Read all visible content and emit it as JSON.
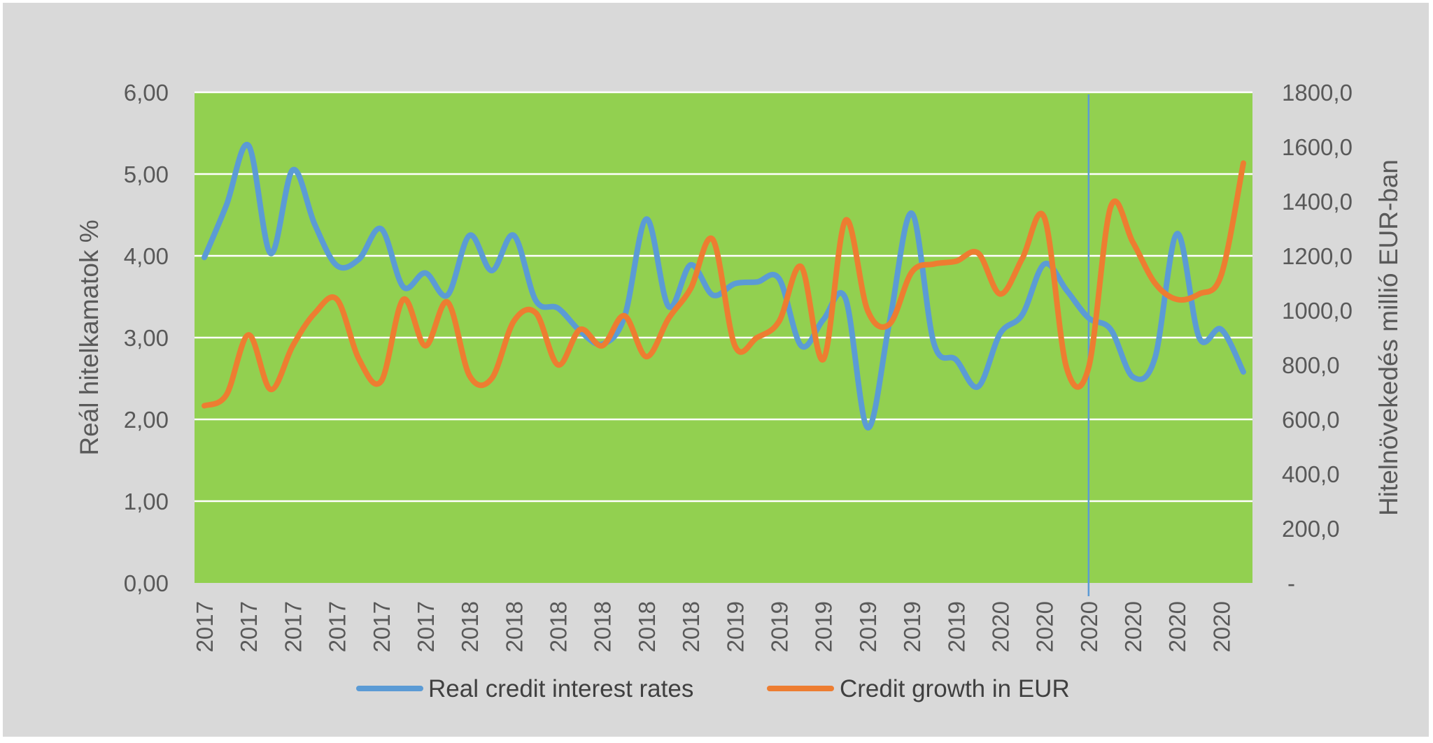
{
  "chart_data": {
    "type": "line",
    "title": "",
    "ylabel": "Reál hitelkamatok %",
    "y2label": "Hitelnövekedés millió EUR-ban",
    "ylim": [
      0,
      6
    ],
    "y2lim": [
      0,
      1800
    ],
    "y_ticks": [
      "0,00",
      "1,00",
      "2,00",
      "3,00",
      "4,00",
      "5,00",
      "6,00"
    ],
    "y2_ticks": [
      "-",
      "200,0",
      "400,0",
      "600,0",
      "800,0",
      "1000,0",
      "1200,0",
      "1400,0",
      "1600,0",
      "1800,0"
    ],
    "x_tick_labels": [
      "2017",
      "2017",
      "2017",
      "2017",
      "2017",
      "2017",
      "2018",
      "2018",
      "2018",
      "2018",
      "2018",
      "2018",
      "2019",
      "2019",
      "2019",
      "2019",
      "2019",
      "2019",
      "2020",
      "2020",
      "2020",
      "2020",
      "2020",
      "2020"
    ],
    "plot_background": "#92d050",
    "grid": true,
    "legend_position": "bottom",
    "vertical_marker_index": 40,
    "series": [
      {
        "name": "Real credit interest rates",
        "axis": "left",
        "color": "#5b9bd5",
        "values": [
          3.98,
          4.62,
          5.35,
          4.03,
          5.05,
          4.38,
          3.88,
          3.96,
          4.33,
          3.62,
          3.79,
          3.52,
          4.25,
          3.82,
          4.25,
          3.45,
          3.36,
          3.08,
          2.92,
          3.25,
          4.45,
          3.38,
          3.89,
          3.52,
          3.66,
          3.68,
          3.72,
          2.9,
          3.22,
          3.48,
          1.9,
          3.2,
          4.52,
          2.93,
          2.73,
          2.4,
          3.05,
          3.28,
          3.9,
          3.58,
          3.24,
          3.1,
          2.52,
          2.75,
          4.27,
          3.0,
          3.1,
          2.58
        ]
      },
      {
        "name": "Credit growth in EUR",
        "axis": "right",
        "color": "#ed7d31",
        "values": [
          650,
          690,
          910,
          710,
          870,
          990,
          1040,
          820,
          740,
          1040,
          870,
          1030,
          760,
          750,
          960,
          990,
          800,
          930,
          870,
          980,
          830,
          970,
          1080,
          1260,
          870,
          900,
          960,
          1160,
          820,
          1330,
          1000,
          950,
          1140,
          1170,
          1180,
          1210,
          1060,
          1190,
          1340,
          790,
          790,
          1380,
          1250,
          1100,
          1040,
          1060,
          1130,
          1540
        ]
      }
    ]
  }
}
